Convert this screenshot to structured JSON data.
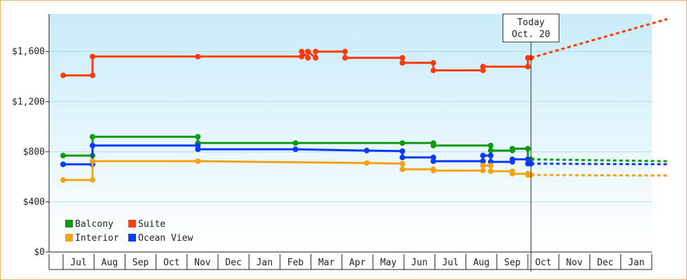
{
  "chart_data": {
    "type": "line",
    "title": "",
    "xlabel": "",
    "ylabel": "",
    "ylim": [
      0,
      1900
    ],
    "y_ticks": [
      {
        "value": 0,
        "label": "$0"
      },
      {
        "value": 400,
        "label": "$400"
      },
      {
        "value": 800,
        "label": "$800"
      },
      {
        "value": 1200,
        "label": "$1,200"
      },
      {
        "value": 1600,
        "label": "$1,600"
      }
    ],
    "x_range": [
      0,
      19.5
    ],
    "month_labels": [
      "Jul",
      "Aug",
      "Sep",
      "Oct",
      "Nov",
      "Dec",
      "Jan",
      "Feb",
      "Mar",
      "Apr",
      "May",
      "Jun",
      "Jul",
      "Aug",
      "Sep",
      "Oct",
      "Nov",
      "Dec",
      "Jan"
    ],
    "today": {
      "x": 15.1,
      "line1": "Today",
      "line2": "Oct. 20"
    },
    "legend": {
      "placement": "bottom-left",
      "items": [
        {
          "label": "Balcony",
          "color": "#119911"
        },
        {
          "label": "Suite",
          "color": "#ff3b0a"
        },
        {
          "label": "Interior",
          "color": "#f5a316"
        },
        {
          "label": "Ocean View",
          "color": "#0a3aff"
        }
      ]
    },
    "series": [
      {
        "name": "Suite",
        "color": "#ff3b0a",
        "points": [
          [
            0.0,
            1410
          ],
          [
            0.95,
            1410
          ],
          [
            0.95,
            1560
          ],
          [
            4.35,
            1560
          ],
          [
            7.7,
            1560
          ],
          [
            7.7,
            1600
          ],
          [
            7.9,
            1550
          ],
          [
            7.9,
            1600
          ],
          [
            8.15,
            1550
          ],
          [
            8.15,
            1600
          ],
          [
            9.1,
            1600
          ],
          [
            9.1,
            1550
          ],
          [
            10.95,
            1550
          ],
          [
            10.95,
            1510
          ],
          [
            11.95,
            1510
          ],
          [
            11.95,
            1450
          ],
          [
            13.55,
            1450
          ],
          [
            13.55,
            1480
          ],
          [
            15.0,
            1480
          ],
          [
            15.0,
            1550
          ],
          [
            15.1,
            1550
          ]
        ],
        "forecast": [
          [
            15.1,
            1550
          ],
          [
            19.5,
            1860
          ]
        ]
      },
      {
        "name": "Balcony",
        "color": "#119911",
        "points": [
          [
            0.0,
            770
          ],
          [
            0.95,
            770
          ],
          [
            0.95,
            920
          ],
          [
            4.35,
            920
          ],
          [
            4.35,
            870
          ],
          [
            7.5,
            870
          ],
          [
            10.95,
            870
          ],
          [
            11.95,
            870
          ],
          [
            11.95,
            850
          ],
          [
            13.8,
            850
          ],
          [
            13.8,
            810
          ],
          [
            14.5,
            810
          ],
          [
            14.5,
            825
          ],
          [
            15.0,
            825
          ],
          [
            15.0,
            740
          ],
          [
            15.1,
            740
          ]
        ],
        "forecast": [
          [
            15.1,
            740
          ],
          [
            19.5,
            725
          ]
        ]
      },
      {
        "name": "Ocean View",
        "color": "#0a3aff",
        "points": [
          [
            0.0,
            700
          ],
          [
            0.95,
            700
          ],
          [
            0.95,
            850
          ],
          [
            4.35,
            850
          ],
          [
            4.35,
            820
          ],
          [
            7.5,
            820
          ],
          [
            9.8,
            810
          ],
          [
            10.95,
            805
          ],
          [
            10.95,
            755
          ],
          [
            11.95,
            755
          ],
          [
            11.95,
            725
          ],
          [
            13.55,
            725
          ],
          [
            13.55,
            770
          ],
          [
            13.8,
            770
          ],
          [
            13.8,
            720
          ],
          [
            14.5,
            720
          ],
          [
            14.5,
            740
          ],
          [
            15.0,
            740
          ],
          [
            15.0,
            705
          ],
          [
            15.1,
            705
          ]
        ],
        "forecast": [
          [
            15.1,
            705
          ],
          [
            19.5,
            700
          ]
        ]
      },
      {
        "name": "Interior",
        "color": "#f5a316",
        "points": [
          [
            0.0,
            575
          ],
          [
            0.95,
            575
          ],
          [
            0.95,
            725
          ],
          [
            4.35,
            725
          ],
          [
            9.8,
            710
          ],
          [
            10.95,
            705
          ],
          [
            10.95,
            660
          ],
          [
            11.95,
            660
          ],
          [
            11.95,
            650
          ],
          [
            13.55,
            650
          ],
          [
            13.55,
            690
          ],
          [
            13.8,
            690
          ],
          [
            13.8,
            645
          ],
          [
            14.5,
            645
          ],
          [
            14.5,
            625
          ],
          [
            15.0,
            625
          ],
          [
            15.0,
            615
          ],
          [
            15.1,
            615
          ]
        ],
        "forecast": [
          [
            15.1,
            615
          ],
          [
            19.5,
            610
          ]
        ]
      }
    ]
  }
}
